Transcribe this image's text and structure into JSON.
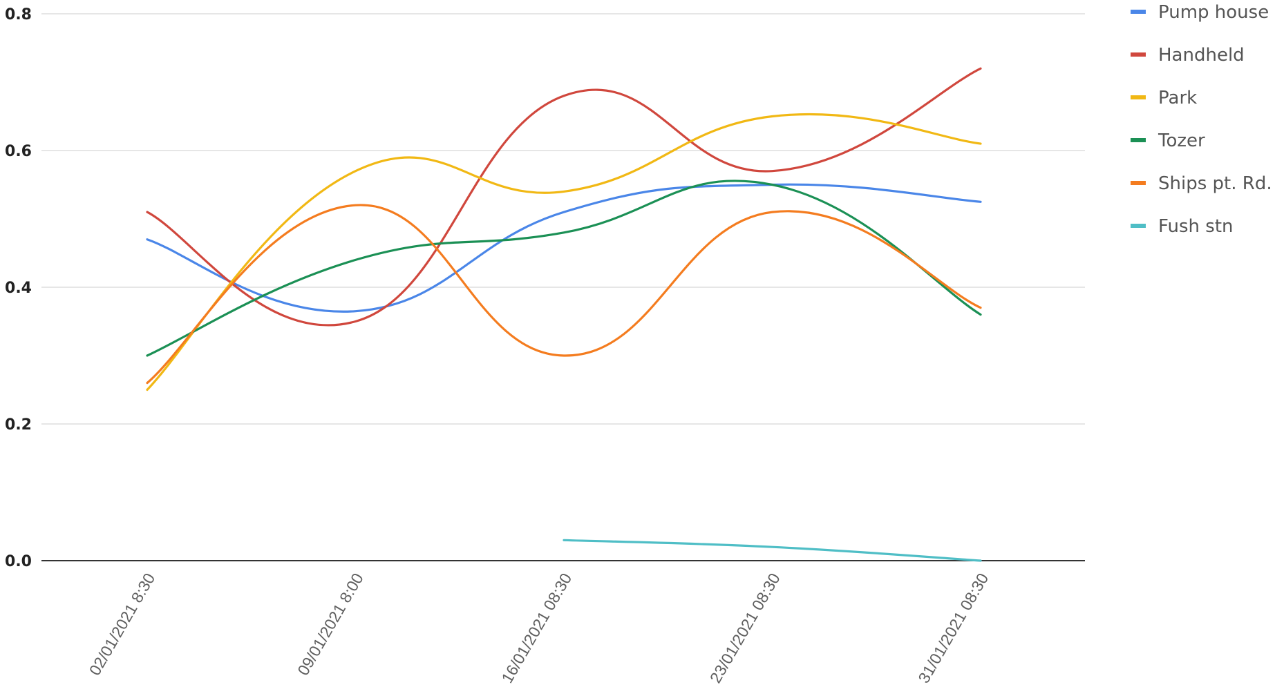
{
  "chart_data": {
    "type": "line",
    "smooth": true,
    "title": "",
    "xlabel": "",
    "ylabel": "",
    "categories": [
      "02/01/2021 8:30",
      "09/01/2021 8:00",
      "16/01/2021 08:30",
      "23/01/2021 08:30",
      "31/01/2021 08:30"
    ],
    "ylim": [
      0,
      0.8
    ],
    "yticks": [
      "0.0",
      "0.2",
      "0.4",
      "0.6",
      "0.8"
    ],
    "ytick_values": [
      0,
      0.2,
      0.4,
      0.6,
      0.8
    ],
    "grid": true,
    "legend_position": "right",
    "series": [
      {
        "name": "Pump house",
        "color": "#4a86e8",
        "values": [
          0.47,
          0.365,
          0.51,
          0.55,
          0.525
        ]
      },
      {
        "name": "Handheld",
        "color": "#d0473d",
        "values": [
          0.51,
          0.35,
          0.68,
          0.57,
          0.72
        ]
      },
      {
        "name": "Park",
        "color": "#f1b814",
        "values": [
          0.25,
          0.57,
          0.54,
          0.65,
          0.61
        ]
      },
      {
        "name": "Tozer",
        "color": "#1b9055",
        "values": [
          0.3,
          0.44,
          0.48,
          0.55,
          0.36
        ]
      },
      {
        "name": "Ships pt. Rd.",
        "color": "#f47c1f",
        "values": [
          0.26,
          0.52,
          0.3,
          0.51,
          0.37
        ]
      },
      {
        "name": "Fush stn",
        "color": "#4fbec6",
        "values": [
          null,
          null,
          0.03,
          0.02,
          0.0
        ]
      }
    ]
  }
}
